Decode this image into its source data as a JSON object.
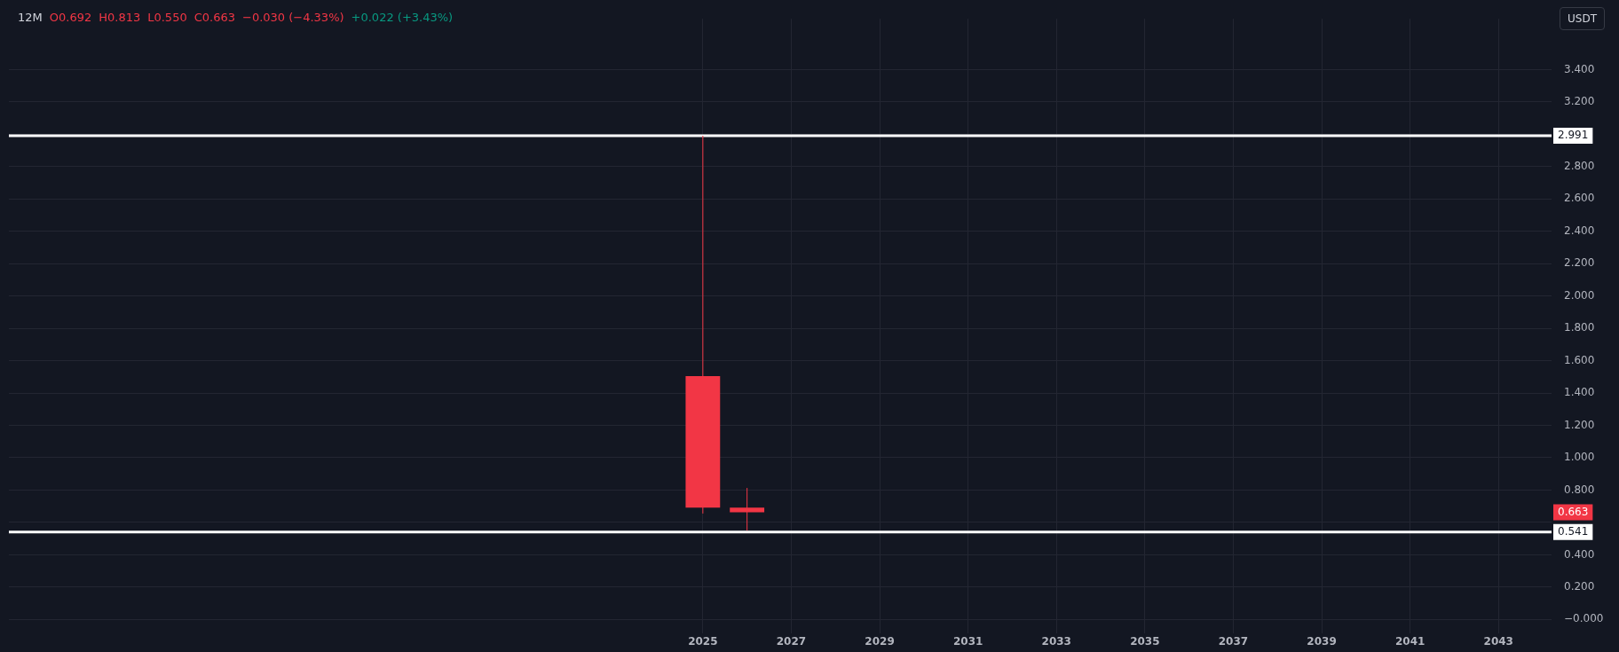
{
  "chart_data": {
    "type": "candlestick",
    "title": "12M",
    "ylabel": "USDT",
    "x": [
      2025,
      2026
    ],
    "ohlc": [
      [
        1.504,
        2.991,
        0.655,
        0.692
      ],
      [
        0.692,
        0.813,
        0.55,
        0.663
      ]
    ],
    "color": "#f23645",
    "annotations": [
      "O0.692",
      "H0.813",
      "L0.550",
      "C0.663",
      "−0.030 (−4.33%)",
      "+0.022 (+3.43%)",
      "0.663"
    ],
    "ref_lines": [
      {
        "axis": "y",
        "value": 2.991,
        "label": "2.991",
        "color": "#ffffff"
      },
      {
        "axis": "y",
        "value": 0.541,
        "label": "0.541",
        "color": "#ffffff"
      }
    ],
    "xlim": [
      2009.3,
      2044.2
    ],
    "xticks": [
      2025,
      2027,
      2029,
      2031,
      2033,
      2035,
      2037,
      2039,
      2041,
      2043
    ],
    "ylim": [
      -0.085,
      3.714
    ],
    "yticks": [
      {
        "value": 0,
        "label": "−0.000"
      },
      {
        "value": 0.2,
        "label": "0.200"
      },
      {
        "value": 0.4,
        "label": "0.400"
      },
      {
        "value": 0.6,
        "label": null
      },
      {
        "value": 0.8,
        "label": "0.800"
      },
      {
        "value": 1,
        "label": "1.000"
      },
      {
        "value": 1.2,
        "label": "1.200"
      },
      {
        "value": 1.4,
        "label": "1.400"
      },
      {
        "value": 1.6,
        "label": "1.600"
      },
      {
        "value": 1.8,
        "label": "1.800"
      },
      {
        "value": 2,
        "label": "2.000"
      },
      {
        "value": 2.2,
        "label": "2.200"
      },
      {
        "value": 2.4,
        "label": "2.400"
      },
      {
        "value": 2.6,
        "label": "2.600"
      },
      {
        "value": 2.8,
        "label": "2.800"
      },
      {
        "value": 3,
        "label": null
      },
      {
        "value": 3.2,
        "label": "3.200"
      },
      {
        "value": 3.4,
        "label": "3.400"
      }
    ],
    "grid": true,
    "legend": false
  }
}
